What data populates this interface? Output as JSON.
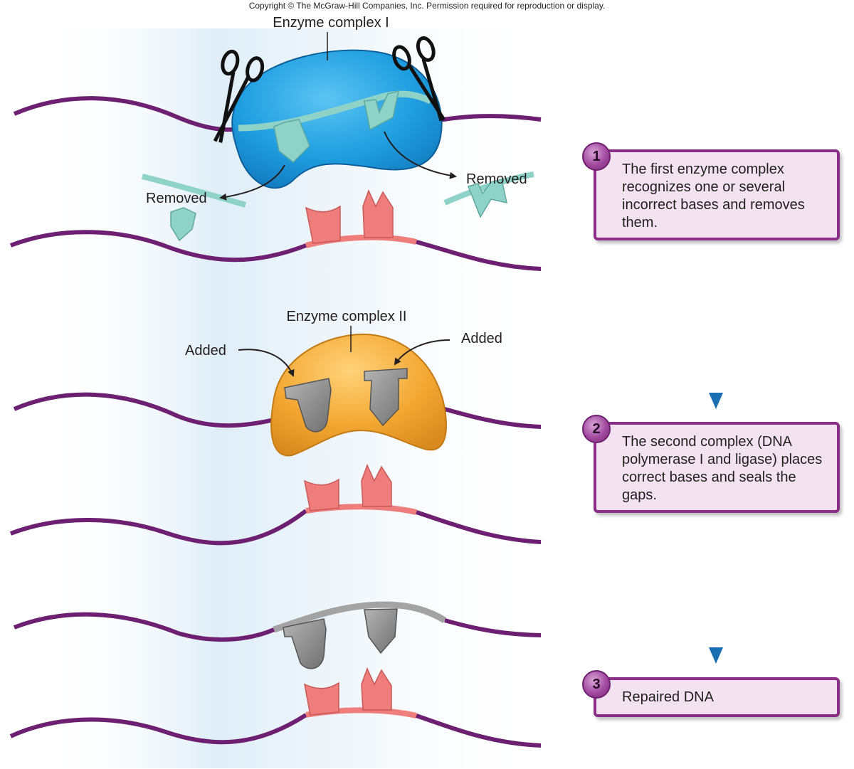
{
  "copyright": "Copyright © The McGraw-Hill Companies, Inc. Permission required for reproduction or display.",
  "labels": {
    "enzyme_complex_1": "Enzyme complex I",
    "enzyme_complex_2": "Enzyme complex II",
    "removed_left": "Removed",
    "removed_right": "Removed",
    "added_left": "Added",
    "added_right": "Added"
  },
  "steps": [
    {
      "number": "1",
      "text": "The first enzyme complex recognizes one or several incorrect bases and removes them."
    },
    {
      "number": "2",
      "text": "The second complex (DNA polymerase I and ligase) places correct bases and seals the gaps."
    },
    {
      "number": "3",
      "text": "Repaired DNA"
    }
  ],
  "colors": {
    "dna_strand": "#6d1f72",
    "enzyme_1": "#1f9ee0",
    "enzyme_2": "#f3a732",
    "incorrect_base": "#8fd3c8",
    "correct_base": "#8c8c8c",
    "complement_base": "#ee7d7c",
    "step_border": "#8a2f88",
    "step_fill": "#f3e3f0",
    "flow_arrow": "#1a6fb3"
  }
}
